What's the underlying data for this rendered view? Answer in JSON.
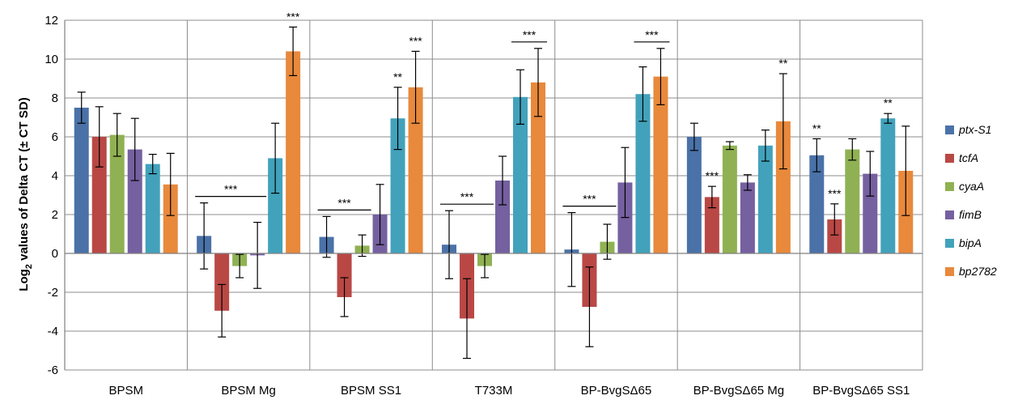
{
  "chart_data": {
    "type": "bar",
    "ylabel_prefix": "Log",
    "ylabel_sub": "2",
    "ylabel_suffix": " values of Delta CT (± CT SD)",
    "ylim": [
      -6,
      12
    ],
    "yticks": [
      -6,
      -4,
      -2,
      0,
      2,
      4,
      6,
      8,
      10,
      12
    ],
    "grid": "horizontal",
    "legend_position": "right",
    "categories": [
      "BPSM",
      "BPSM  Mg",
      "BPSM  SS1",
      "T733M",
      "BP-BvgSΔ65",
      "BP-BvgSΔ65 Mg",
      "BP-BvgSΔ65 SS1"
    ],
    "series": [
      {
        "name": "ptx-S1",
        "color": "#4A72A8",
        "values": [
          7.5,
          0.9,
          0.85,
          0.45,
          0.2,
          6.0,
          5.05
        ],
        "err": [
          0.8,
          1.7,
          1.05,
          1.75,
          1.9,
          0.7,
          0.85
        ]
      },
      {
        "name": "tcfA",
        "color": "#B94845",
        "values": [
          6.0,
          -2.95,
          -2.25,
          -3.35,
          -2.75,
          2.9,
          1.75
        ],
        "err": [
          1.55,
          1.35,
          1.0,
          2.05,
          2.05,
          0.55,
          0.8
        ]
      },
      {
        "name": "cyaA",
        "color": "#90B153",
        "values": [
          6.1,
          -0.65,
          0.4,
          -0.65,
          0.6,
          5.55,
          5.35
        ],
        "err": [
          1.1,
          0.6,
          0.55,
          0.6,
          0.9,
          0.2,
          0.55
        ]
      },
      {
        "name": "fimB",
        "color": "#7560A0",
        "values": [
          5.35,
          -0.1,
          2.0,
          3.75,
          3.65,
          3.65,
          4.1
        ],
        "err": [
          1.6,
          1.7,
          1.55,
          1.25,
          1.8,
          0.4,
          1.15
        ]
      },
      {
        "name": "bipA",
        "color": "#42A2BB",
        "values": [
          4.6,
          4.9,
          6.95,
          8.05,
          8.2,
          5.55,
          6.95
        ],
        "err": [
          0.5,
          1.8,
          1.6,
          1.4,
          1.4,
          0.8,
          0.25
        ]
      },
      {
        "name": "bp2782",
        "color": "#E8893C",
        "values": [
          3.55,
          10.4,
          8.55,
          8.8,
          9.1,
          6.8,
          4.25
        ],
        "err": [
          1.6,
          1.25,
          1.85,
          1.75,
          1.45,
          2.45,
          2.3
        ]
      }
    ],
    "significance": [
      {
        "group": 1,
        "text": "***",
        "bracket": [
          0,
          3
        ]
      },
      {
        "group": 1,
        "text": "***",
        "series": 5
      },
      {
        "group": 2,
        "text": "***",
        "bracket": [
          0,
          2
        ]
      },
      {
        "group": 2,
        "text": "**",
        "series": 4
      },
      {
        "group": 2,
        "text": "***",
        "series": 5
      },
      {
        "group": 3,
        "text": "***",
        "bracket": [
          0,
          2
        ]
      },
      {
        "group": 3,
        "text": "***",
        "bracket": [
          4,
          5
        ]
      },
      {
        "group": 4,
        "text": "***",
        "bracket": [
          0,
          2
        ]
      },
      {
        "group": 4,
        "text": "***",
        "bracket": [
          4,
          5
        ]
      },
      {
        "group": 5,
        "text": "***",
        "series": 1
      },
      {
        "group": 5,
        "text": "**",
        "series": 5
      },
      {
        "group": 6,
        "text": "**",
        "series": 0
      },
      {
        "group": 6,
        "text": "***",
        "series": 1
      },
      {
        "group": 6,
        "text": "**",
        "series": 4
      }
    ]
  }
}
